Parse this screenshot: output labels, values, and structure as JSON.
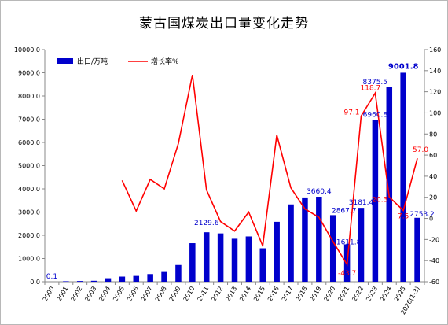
{
  "chart_data": {
    "type": "bar+line",
    "title": "蒙古国煤炭出口量变化走势",
    "categories": [
      "2000",
      "2001",
      "2002",
      "2003",
      "2004",
      "2005",
      "2006",
      "2007",
      "2008",
      "2009",
      "2010",
      "2011",
      "2012",
      "2013",
      "2014",
      "2015",
      "2016",
      "2017",
      "2018",
      "2019",
      "2020",
      "2021",
      "2022",
      "2023",
      "2024",
      "2025",
      "2026(1-3)"
    ],
    "series": [
      {
        "name": "出口/万吨",
        "kind": "bar",
        "axis": "left",
        "color": "#0000cc",
        "values": [
          0.1,
          20,
          30,
          40,
          150,
          220,
          250,
          330,
          420,
          720,
          1660,
          2129.6,
          2080,
          1850,
          1950,
          1440,
          2580,
          3330,
          3630,
          3660.4,
          2867.7,
          1611.8,
          3181.4,
          6960.8,
          8375.5,
          9001.8,
          2753.2
        ]
      },
      {
        "name": "增长率%",
        "kind": "line",
        "axis": "right",
        "color": "#ff0000",
        "values": [
          null,
          null,
          null,
          null,
          null,
          36,
          7,
          37,
          28,
          71,
          136,
          27,
          -3,
          -12,
          6,
          -26,
          79,
          29,
          9,
          1,
          -22,
          -43.7,
          97.1,
          118.7,
          20.3,
          7.5,
          57.0
        ]
      }
    ],
    "bar_labels": [
      {
        "index": 0,
        "text": "0.1"
      },
      {
        "index": 11,
        "text": "2129.6"
      },
      {
        "index": 19,
        "text": "3660.4"
      },
      {
        "index": 20,
        "text": "2867.7"
      },
      {
        "index": 21,
        "text": "1611.8"
      },
      {
        "index": 22,
        "text": "3181.4"
      },
      {
        "index": 23,
        "text": "6960.8"
      },
      {
        "index": 24,
        "text": "8375.5"
      },
      {
        "index": 25,
        "text": "9001.8",
        "bold": true
      },
      {
        "index": 26,
        "text": "2753.2"
      }
    ],
    "line_labels": [
      {
        "index": 21,
        "text": "-43.7"
      },
      {
        "index": 22,
        "text": "97.1"
      },
      {
        "index": 23,
        "text": "118.7"
      },
      {
        "index": 24,
        "text": "20.3"
      },
      {
        "index": 25,
        "text": "7.5"
      },
      {
        "index": 26,
        "text": "57.0"
      }
    ],
    "ylim_left": [
      0,
      10000
    ],
    "yticks_left": [
      "0.0",
      "1000.0",
      "2000.0",
      "3000.0",
      "4000.0",
      "5000.0",
      "6000.0",
      "7000.0",
      "8000.0",
      "9000.0",
      "10000.0"
    ],
    "ylim_right": [
      -60,
      160
    ],
    "yticks_right": [
      "-60",
      "-40",
      "-20",
      "0",
      "20",
      "40",
      "60",
      "80",
      "100",
      "120",
      "140",
      "160"
    ],
    "grid": false,
    "legend_position": "top-left"
  }
}
